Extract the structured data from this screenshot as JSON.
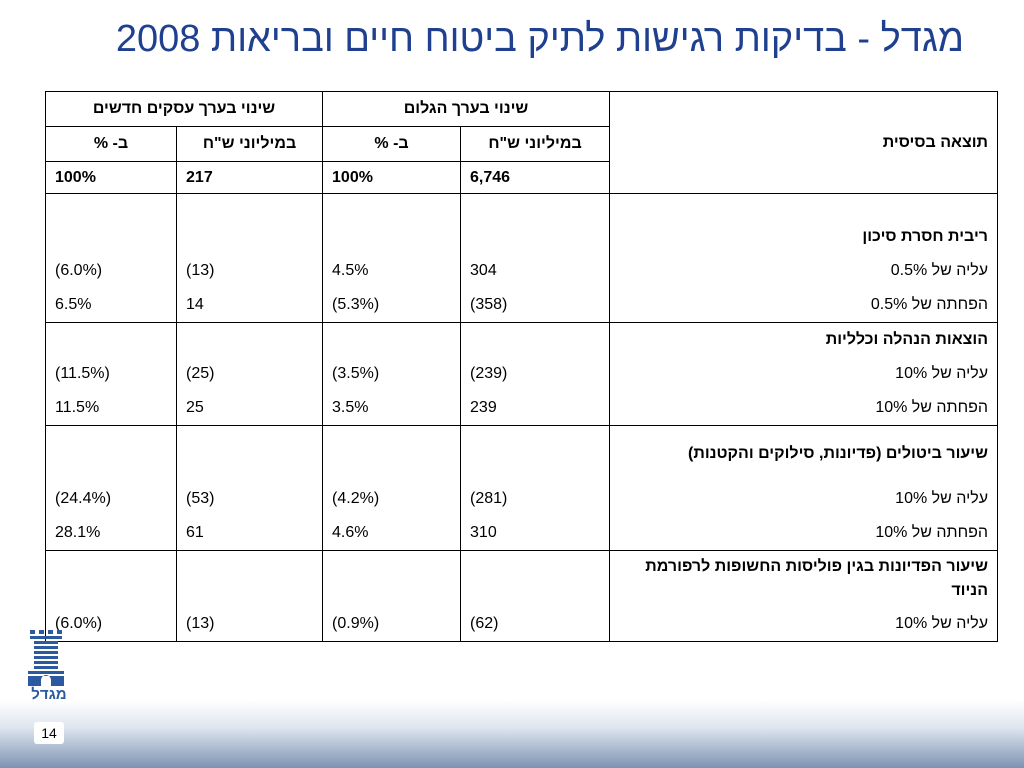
{
  "title": "מגדל - בדיקות רגישות לתיק ביטוח חיים ובריאות 2008",
  "header": {
    "base_result": "תוצאה בסיסית",
    "group_value": "שינוי בערך הגלום",
    "group_new": "שינוי בערך עסקים חדשים",
    "col_millions": "במיליוני ש\"ח",
    "col_percent": "ב- %"
  },
  "base": {
    "value_mil": "6,746",
    "value_pct": "100%",
    "new_mil": "217",
    "new_pct": "100%"
  },
  "groups": [
    {
      "heading": "ריבית חסרת סיכון",
      "rows": [
        {
          "label": "עליה של 0.5%",
          "value_mil": "304",
          "value_pct": "4.5%",
          "new_mil": "(13)",
          "new_pct": "(6.0%)"
        },
        {
          "label": "הפחתה של 0.5%",
          "value_mil": "(358)",
          "value_pct": "(5.3%)",
          "new_mil": "14",
          "new_pct": "6.5%"
        }
      ]
    },
    {
      "heading": "הוצאות הנהלה וכלליות",
      "rows": [
        {
          "label": "עליה של 10%",
          "value_mil": "(239)",
          "value_pct": "(3.5%)",
          "new_mil": "(25)",
          "new_pct": "(11.5%)"
        },
        {
          "label": "הפחתה של 10%",
          "value_mil": "239",
          "value_pct": "3.5%",
          "new_mil": "25",
          "new_pct": "11.5%"
        }
      ]
    },
    {
      "heading": "שיעור ביטולים (פדיונות, סילוקים והקטנות)",
      "rows": [
        {
          "label": "עליה של 10%",
          "value_mil": "(281)",
          "value_pct": "(4.2%)",
          "new_mil": "(53)",
          "new_pct": "(24.4%)"
        },
        {
          "label": "הפחתה של 10%",
          "value_mil": "310",
          "value_pct": "4.6%",
          "new_mil": "61",
          "new_pct": "28.1%"
        }
      ]
    },
    {
      "heading": "שיעור הפדיונות בגין פוליסות החשופות לרפורמת הניוד",
      "rows": [
        {
          "label": "עליה של 10%",
          "value_mil": "(62)",
          "value_pct": "(0.9%)",
          "new_mil": "(13)",
          "new_pct": "(6.0%)"
        }
      ]
    }
  ],
  "logo": {
    "text": "מגדל",
    "color": "#2c5aa0"
  },
  "page_number": "14",
  "colors": {
    "title": "#1f3f8f",
    "band": "#7d93b3"
  }
}
